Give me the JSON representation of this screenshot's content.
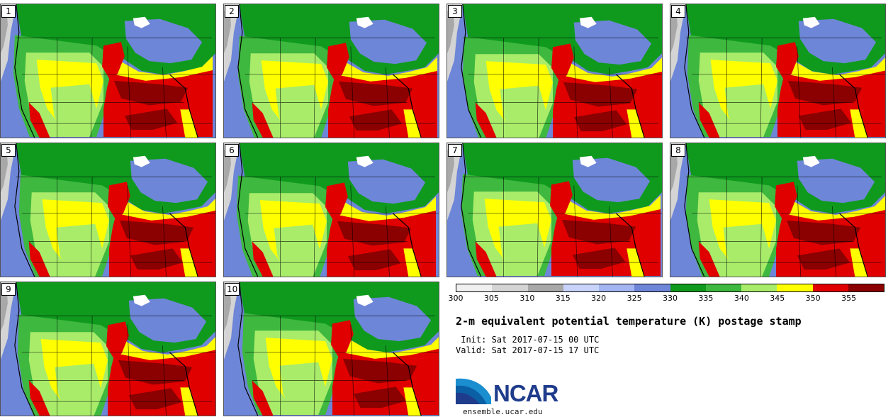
{
  "panels": [
    {
      "label": "1",
      "variant": 0
    },
    {
      "label": "2",
      "variant": 1
    },
    {
      "label": "3",
      "variant": 2
    },
    {
      "label": "4",
      "variant": 3
    },
    {
      "label": "5",
      "variant": 4
    },
    {
      "label": "6",
      "variant": 5
    },
    {
      "label": "7",
      "variant": 6
    },
    {
      "label": "8",
      "variant": 7
    },
    {
      "label": "9",
      "variant": 8
    },
    {
      "label": "10",
      "variant": 9
    }
  ],
  "colorbar": {
    "colors": [
      "#f0f0f0",
      "#d4d4d4",
      "#a8a8a8",
      "#c8d4fa",
      "#a3b6f2",
      "#6e86d8",
      "#0f9a1e",
      "#3eb83e",
      "#a8ec6a",
      "#ffff00",
      "#e00000",
      "#8b0000"
    ],
    "labels": [
      "300",
      "305",
      "310",
      "315",
      "320",
      "325",
      "330",
      "335",
      "340",
      "345",
      "350",
      "355"
    ]
  },
  "title": "2-m equivalent potential temperature (K) postage stamp",
  "init_line": " Init: Sat 2017-07-15 00 UTC",
  "valid_line": "Valid: Sat 2017-07-15 17 UTC",
  "logo": {
    "text": "NCAR",
    "url": "ensemble.ucar.edu"
  }
}
